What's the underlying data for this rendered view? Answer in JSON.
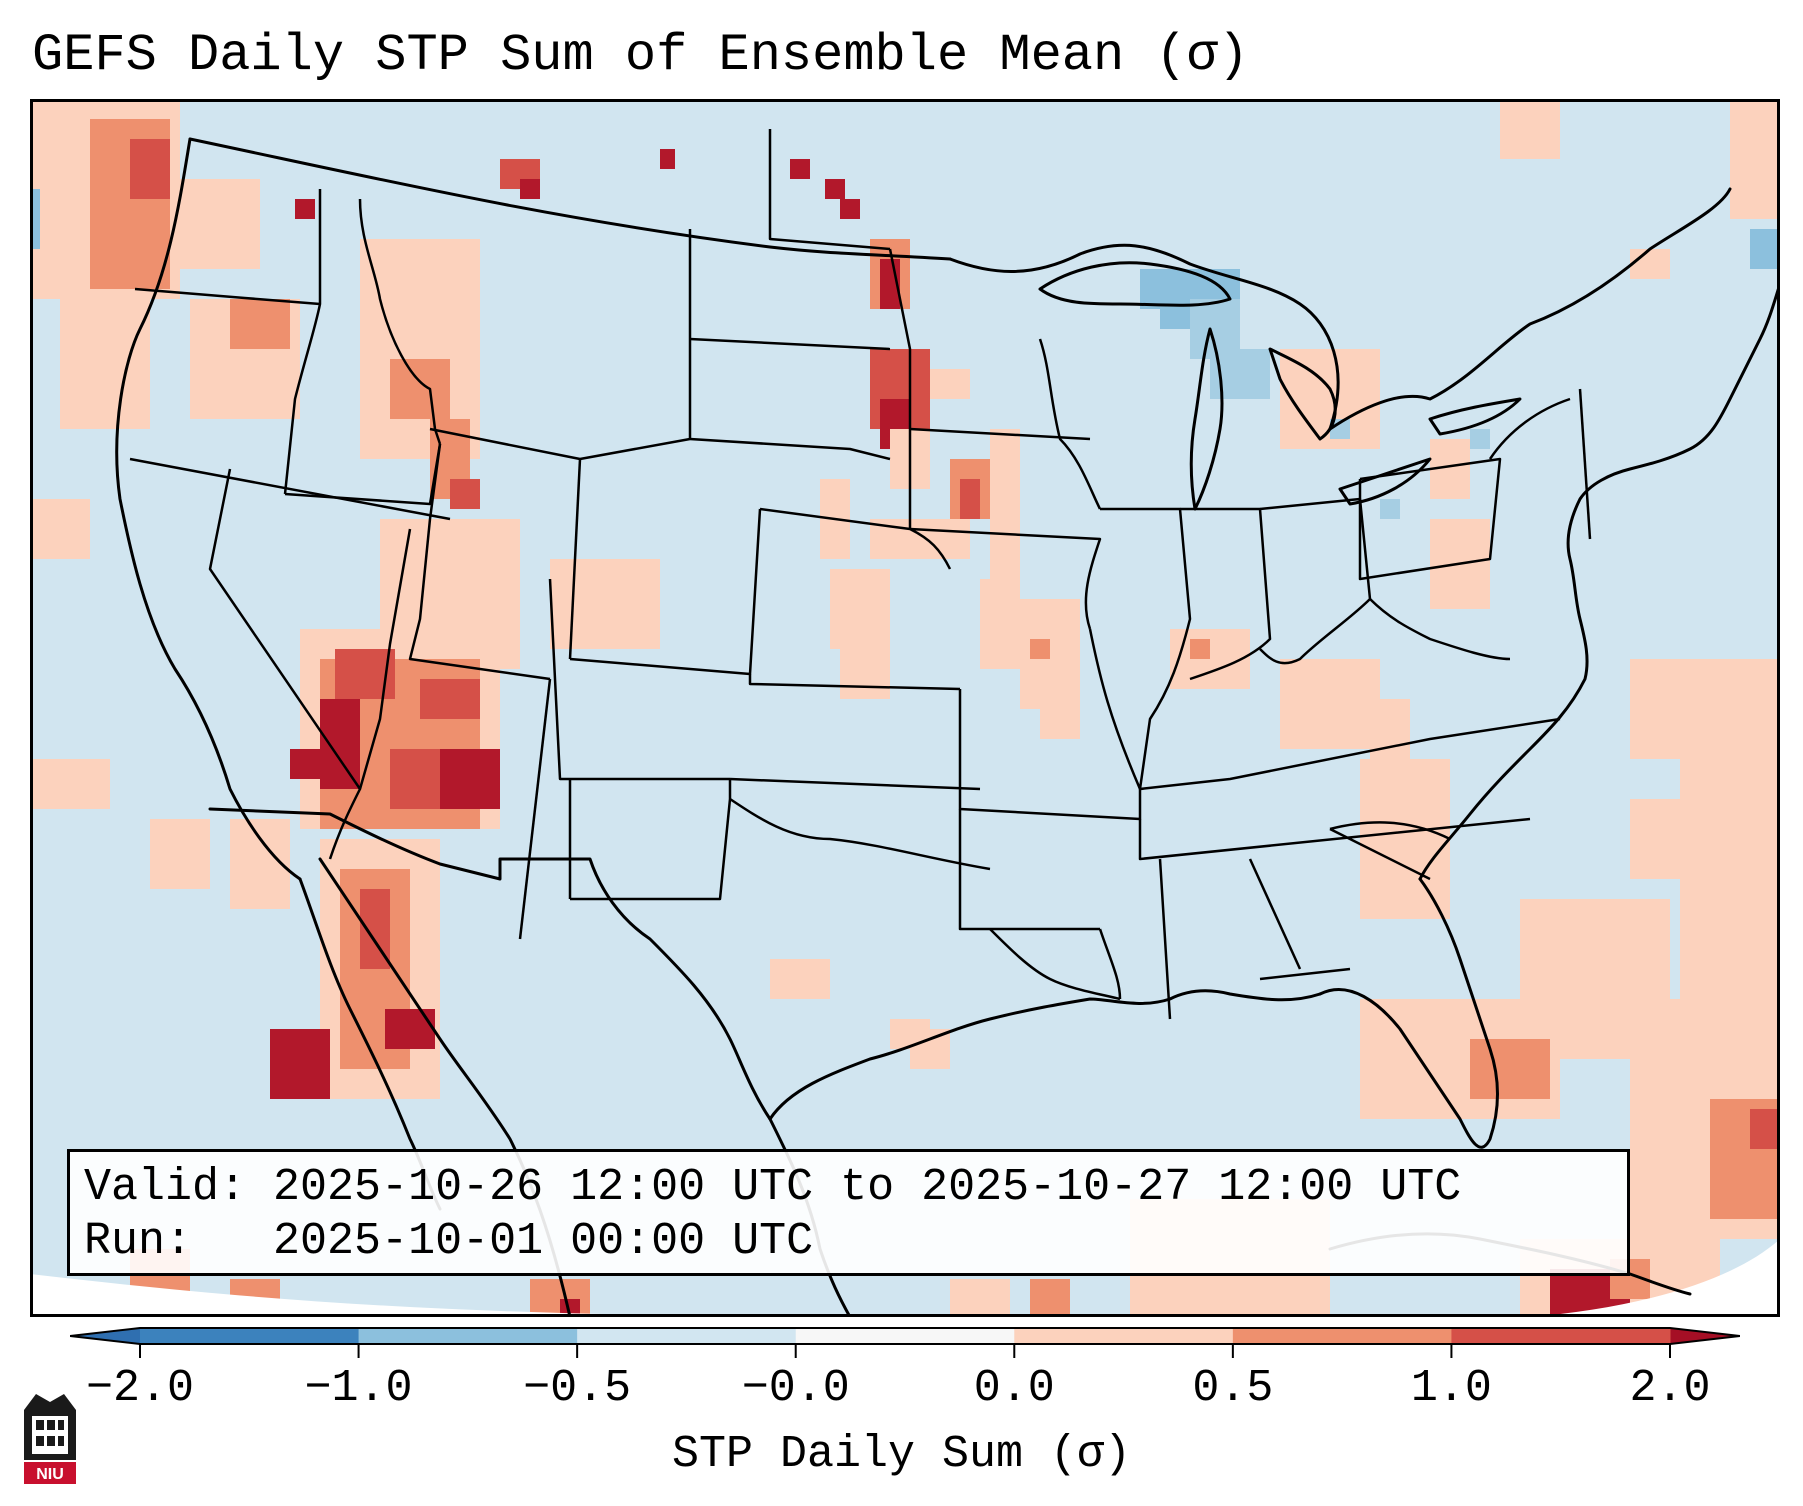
{
  "title": "GEFS Daily STP Sum of Ensemble Mean (σ)",
  "legend": {
    "valid_label": "Valid:",
    "valid_value": "2025-10-26 12:00 UTC to 2025-10-27 12:00 UTC",
    "run_label": "Run:",
    "run_value": "2025-10-01 00:00 UTC"
  },
  "colorbar": {
    "label": "STP Daily Sum (σ)",
    "ticks": [
      "−2.0",
      "−1.0",
      "−0.5",
      "−0.0",
      "0.0",
      "0.5",
      "1.0",
      "2.0"
    ],
    "bin_colors": [
      "#3c82bd",
      "#8cc0dd",
      "#d2e6f1",
      "#f7f7f7",
      "#fcd2bd",
      "#ee906e",
      "#d55048",
      "#b2182b"
    ],
    "under_color": "#2f6fb0",
    "over_color": "#a50f25"
  },
  "map": {
    "region": "CONUS",
    "ocean_color": "#d1e5f0",
    "boundary_color": "#000000"
  },
  "logo": {
    "text": "NIU"
  }
}
